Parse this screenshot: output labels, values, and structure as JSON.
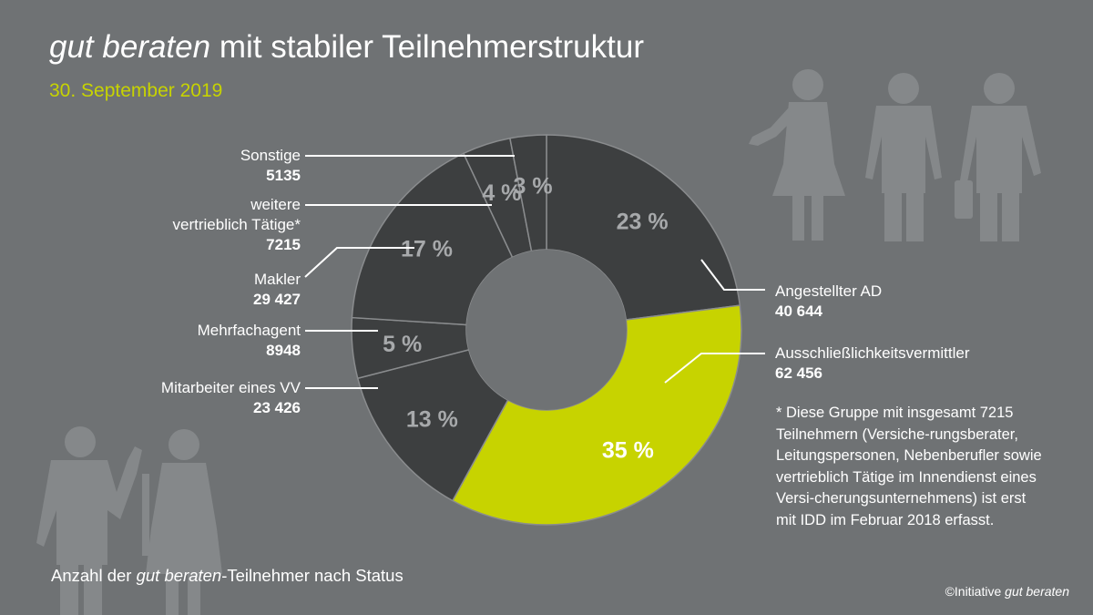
{
  "title": {
    "italic": "gut beraten",
    "rest": " mit stabiler Teilnehmerstruktur"
  },
  "subtitle": "30. September 2019",
  "colors": {
    "background": "#6f7274",
    "segment_dark": "#3d3f40",
    "segment_accent": "#c7d300",
    "percent_label": "#a7a9ab",
    "subtitle": "#c7d300"
  },
  "chart_data": {
    "type": "pie",
    "donut": true,
    "series": [
      {
        "name": "Angestellter AD",
        "count": "40 644",
        "value": 23
      },
      {
        "name": "Ausschließlichkeitsvermittler",
        "count": "62 456",
        "value": 35
      },
      {
        "name": "Mitarbeiter eines VV",
        "count": "23 426",
        "value": 13
      },
      {
        "name": "Mehrfachagent",
        "count": "8948",
        "value": 5
      },
      {
        "name": "Makler",
        "count": "29 427",
        "value": 17
      },
      {
        "name": "weitere vertrieblich Tätige*",
        "count": "7215",
        "value": 4
      },
      {
        "name": "Sonstige",
        "count": "5135",
        "value": 3
      }
    ],
    "percent_labels": [
      "23 %",
      "35 %",
      "13 %",
      "5 %",
      "17 %",
      "4 %",
      "3 %"
    ]
  },
  "labels": {
    "angestellter": {
      "name": "Angestellter AD",
      "value": "40 644"
    },
    "ausschliess": {
      "name": "Ausschließlichkeitsvermittler",
      "value": "62 456"
    },
    "mitarbeiter": {
      "name": "Mitarbeiter eines VV",
      "value": "23 426"
    },
    "mehrfach": {
      "name": "Mehrfachagent",
      "value": "8948"
    },
    "makler": {
      "name": "Makler",
      "value": "29 427"
    },
    "weitere_1": "weitere",
    "weitere_2": "vertrieblich Tätige*",
    "weitere_value": "7215",
    "sonstige": {
      "name": "Sonstige",
      "value": "5135"
    }
  },
  "footnote": "* Diese Gruppe mit insgesamt 7215 Teilnehmern (Versiche-rungsberater, Leitungspersonen, Nebenberufler sowie vertrieblich Tätige im Innendienst eines Versi-cherungsunternehmens) ist erst mit IDD im Februar 2018 erfasst.",
  "caption": {
    "before": "Anzahl der ",
    "italic": "gut beraten",
    "after": "-Teilnehmer nach Status"
  },
  "copyright": {
    "text": "©Initiative ",
    "italic": "gut beraten"
  }
}
